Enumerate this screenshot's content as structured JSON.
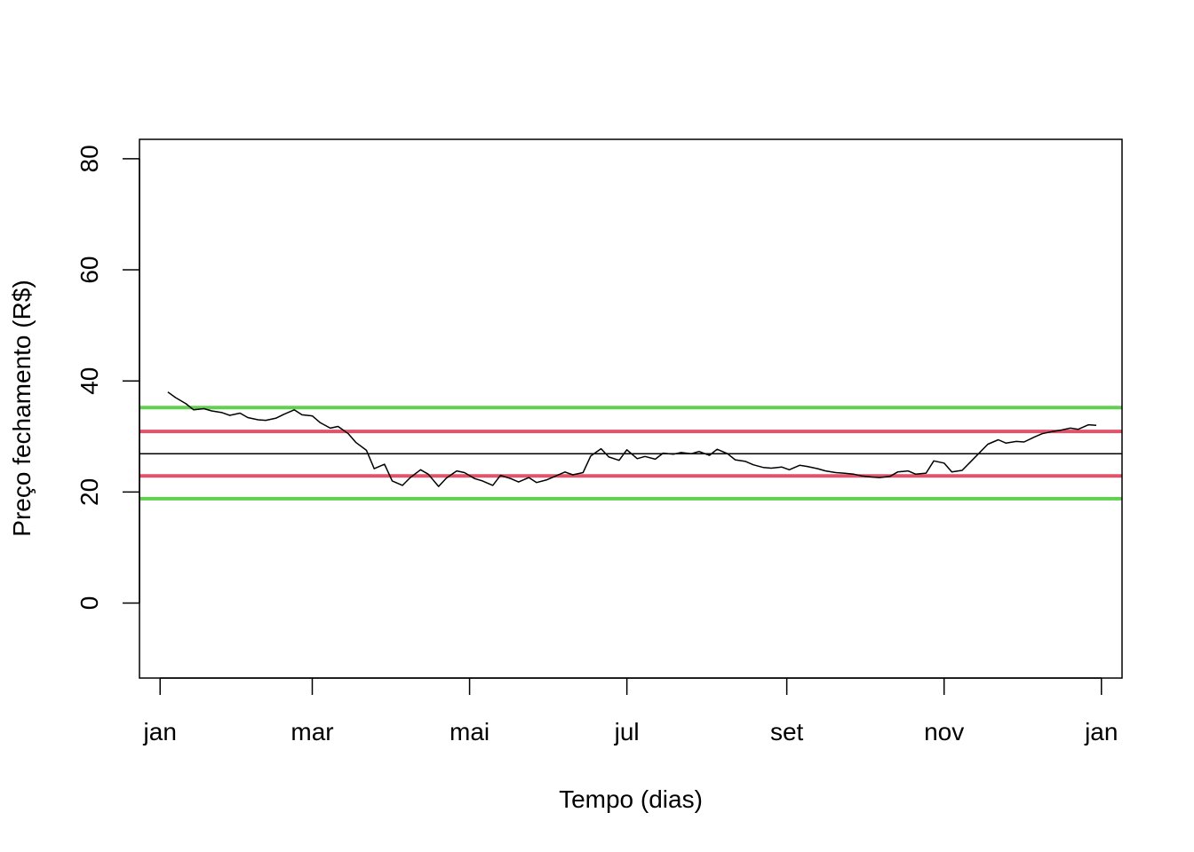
{
  "chart_data": {
    "type": "line",
    "title": "",
    "xlabel": "Tempo (dias)",
    "ylabel": "Preço fechamento (R$)",
    "xlim": [
      "2020-12-24",
      "2022-01-09"
    ],
    "ylim": [
      -13.5,
      83.5
    ],
    "grid": false,
    "legend": "none",
    "x_ticks": [
      {
        "date": "2021-01-01",
        "label": "jan"
      },
      {
        "date": "2021-03-01",
        "label": "mar"
      },
      {
        "date": "2021-05-01",
        "label": "mai"
      },
      {
        "date": "2021-07-01",
        "label": "jul"
      },
      {
        "date": "2021-09-01",
        "label": "set"
      },
      {
        "date": "2021-11-01",
        "label": "nov"
      },
      {
        "date": "2022-01-01",
        "label": "jan"
      }
    ],
    "y_ticks": [
      0,
      20,
      40,
      60,
      80
    ],
    "series": [
      {
        "color": "#000000",
        "points": [
          [
            "2021-01-04",
            38.0
          ],
          [
            "2021-01-07",
            37.0
          ],
          [
            "2021-01-11",
            35.9
          ],
          [
            "2021-01-14",
            34.8
          ],
          [
            "2021-01-18",
            35.0
          ],
          [
            "2021-01-21",
            34.6
          ],
          [
            "2021-01-25",
            34.3
          ],
          [
            "2021-01-28",
            33.8
          ],
          [
            "2021-02-01",
            34.2
          ],
          [
            "2021-02-04",
            33.4
          ],
          [
            "2021-02-08",
            33.0
          ],
          [
            "2021-02-11",
            32.9
          ],
          [
            "2021-02-15",
            33.3
          ],
          [
            "2021-02-18",
            34.0
          ],
          [
            "2021-02-22",
            34.8
          ],
          [
            "2021-02-25",
            33.9
          ],
          [
            "2021-03-01",
            33.7
          ],
          [
            "2021-03-04",
            32.5
          ],
          [
            "2021-03-08",
            31.5
          ],
          [
            "2021-03-11",
            31.8
          ],
          [
            "2021-03-15",
            30.5
          ],
          [
            "2021-03-18",
            28.9
          ],
          [
            "2021-03-22",
            27.5
          ],
          [
            "2021-03-25",
            24.2
          ],
          [
            "2021-03-29",
            25.0
          ],
          [
            "2021-04-01",
            22.0
          ],
          [
            "2021-04-05",
            21.2
          ],
          [
            "2021-04-08",
            22.6
          ],
          [
            "2021-04-12",
            24.0
          ],
          [
            "2021-04-15",
            23.2
          ],
          [
            "2021-04-19",
            21.0
          ],
          [
            "2021-04-22",
            22.5
          ],
          [
            "2021-04-26",
            23.8
          ],
          [
            "2021-04-29",
            23.5
          ],
          [
            "2021-05-03",
            22.4
          ],
          [
            "2021-05-06",
            22.0
          ],
          [
            "2021-05-10",
            21.2
          ],
          [
            "2021-05-13",
            23.0
          ],
          [
            "2021-05-17",
            22.4
          ],
          [
            "2021-05-20",
            21.8
          ],
          [
            "2021-05-24",
            22.6
          ],
          [
            "2021-05-27",
            21.7
          ],
          [
            "2021-05-31",
            22.2
          ],
          [
            "2021-06-03",
            22.8
          ],
          [
            "2021-06-07",
            23.6
          ],
          [
            "2021-06-10",
            23.1
          ],
          [
            "2021-06-14",
            23.5
          ],
          [
            "2021-06-17",
            26.5
          ],
          [
            "2021-06-21",
            27.8
          ],
          [
            "2021-06-24",
            26.3
          ],
          [
            "2021-06-28",
            25.7
          ],
          [
            "2021-07-01",
            27.6
          ],
          [
            "2021-07-05",
            26.0
          ],
          [
            "2021-07-08",
            26.4
          ],
          [
            "2021-07-12",
            25.9
          ],
          [
            "2021-07-15",
            27.0
          ],
          [
            "2021-07-19",
            26.8
          ],
          [
            "2021-07-22",
            27.1
          ],
          [
            "2021-07-26",
            26.9
          ],
          [
            "2021-07-29",
            27.3
          ],
          [
            "2021-08-02",
            26.6
          ],
          [
            "2021-08-05",
            27.7
          ],
          [
            "2021-08-09",
            26.9
          ],
          [
            "2021-08-12",
            25.8
          ],
          [
            "2021-08-16",
            25.5
          ],
          [
            "2021-08-19",
            24.9
          ],
          [
            "2021-08-23",
            24.4
          ],
          [
            "2021-08-26",
            24.3
          ],
          [
            "2021-08-30",
            24.5
          ],
          [
            "2021-09-02",
            24.0
          ],
          [
            "2021-09-06",
            24.8
          ],
          [
            "2021-09-09",
            24.6
          ],
          [
            "2021-09-13",
            24.2
          ],
          [
            "2021-09-16",
            23.8
          ],
          [
            "2021-09-20",
            23.5
          ],
          [
            "2021-09-23",
            23.4
          ],
          [
            "2021-09-27",
            23.2
          ],
          [
            "2021-09-30",
            22.9
          ],
          [
            "2021-10-04",
            22.7
          ],
          [
            "2021-10-07",
            22.6
          ],
          [
            "2021-10-11",
            22.8
          ],
          [
            "2021-10-14",
            23.6
          ],
          [
            "2021-10-18",
            23.8
          ],
          [
            "2021-10-21",
            23.2
          ],
          [
            "2021-10-25",
            23.4
          ],
          [
            "2021-10-28",
            25.6
          ],
          [
            "2021-11-01",
            25.2
          ],
          [
            "2021-11-04",
            23.6
          ],
          [
            "2021-11-08",
            23.9
          ],
          [
            "2021-11-11",
            25.3
          ],
          [
            "2021-11-15",
            27.2
          ],
          [
            "2021-11-18",
            28.6
          ],
          [
            "2021-11-22",
            29.4
          ],
          [
            "2021-11-25",
            28.8
          ],
          [
            "2021-11-29",
            29.1
          ],
          [
            "2021-12-02",
            29.0
          ],
          [
            "2021-12-06",
            29.9
          ],
          [
            "2021-12-09",
            30.5
          ],
          [
            "2021-12-13",
            30.9
          ],
          [
            "2021-12-16",
            31.1
          ],
          [
            "2021-12-20",
            31.5
          ],
          [
            "2021-12-23",
            31.3
          ],
          [
            "2021-12-27",
            32.1
          ],
          [
            "2021-12-30",
            32.0
          ]
        ]
      }
    ],
    "hlines": [
      {
        "y": 26.9,
        "color": "#000000"
      },
      {
        "y": 30.9,
        "color": "#DF536B"
      },
      {
        "y": 22.9,
        "color": "#DF536B"
      },
      {
        "y": 35.2,
        "color": "#61D04F"
      },
      {
        "y": 18.8,
        "color": "#61D04F"
      }
    ]
  }
}
